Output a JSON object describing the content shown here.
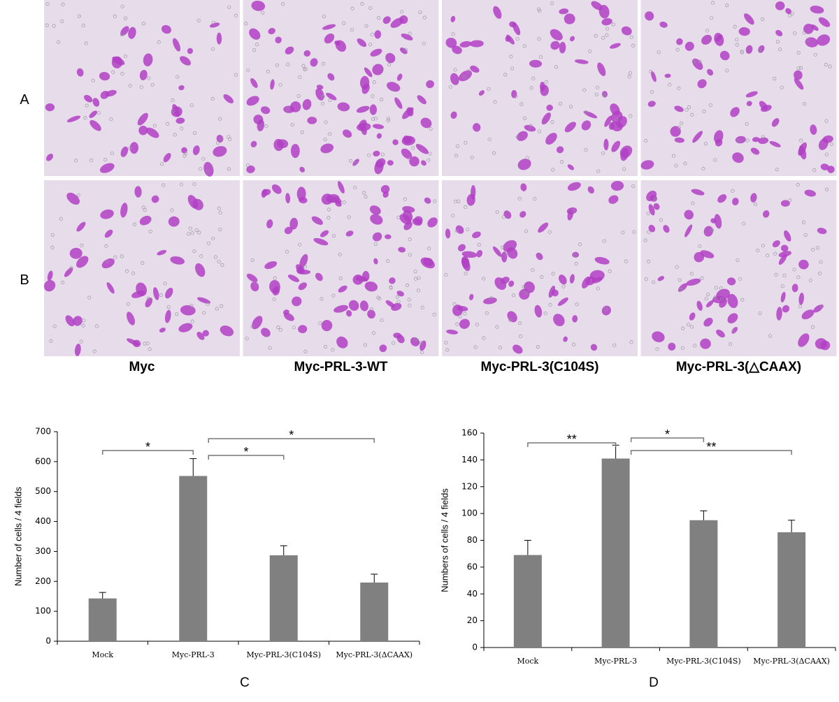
{
  "micrographs": {
    "rows": [
      "A",
      "B"
    ],
    "columns": [
      "Myc",
      "Myc-PRL-3-WT",
      "Myc-PRL-3(C104S)",
      "Myc-PRL-3(△CAAX)"
    ]
  },
  "chart_data": [
    {
      "type": "bar",
      "panel_label": "C",
      "y_label": "Number  of cells / 4 fields",
      "categories": [
        "Mock",
        "Myc-PRL-3",
        "Myc-PRL-3(C104S)",
        "Myc-PRL-3(ΔCAAX)"
      ],
      "values": [
        143,
        552,
        287,
        196
      ],
      "errors": [
        20,
        58,
        32,
        28
      ],
      "color": "#808080",
      "ylim": [
        0,
        700
      ],
      "yticks": [
        0,
        100,
        200,
        300,
        400,
        500,
        600,
        700
      ],
      "significance": [
        {
          "label": "*",
          "between": [
            "Mock",
            "Myc-PRL-3"
          ]
        },
        {
          "label": "*",
          "between": [
            "Myc-PRL-3",
            "Myc-PRL-3(ΔCAAX)"
          ]
        },
        {
          "label": "*",
          "between": [
            "Myc-PRL-3",
            "Myc-PRL-3(C104S)"
          ]
        }
      ]
    },
    {
      "type": "bar",
      "panel_label": "D",
      "y_label": "Numbers of cells / 4 fields",
      "categories": [
        "Mock",
        "Myc-PRL-3",
        "Myc-PRL-3(C104S)",
        "Myc-PRL-3(ΔCAAX)"
      ],
      "values": [
        69,
        141,
        95,
        86
      ],
      "errors": [
        11,
        10,
        7,
        9
      ],
      "color": "#808080",
      "ylim": [
        0,
        160
      ],
      "yticks": [
        0,
        20,
        40,
        60,
        80,
        100,
        120,
        140,
        160
      ],
      "significance": [
        {
          "label": "**",
          "between": [
            "Mock",
            "Myc-PRL-3"
          ]
        },
        {
          "label": "*",
          "between": [
            "Myc-PRL-3",
            "Myc-PRL-3(C104S)"
          ]
        },
        {
          "label": "**",
          "between": [
            "Myc-PRL-3",
            "Myc-PRL-3(ΔCAAX)"
          ]
        }
      ]
    }
  ]
}
